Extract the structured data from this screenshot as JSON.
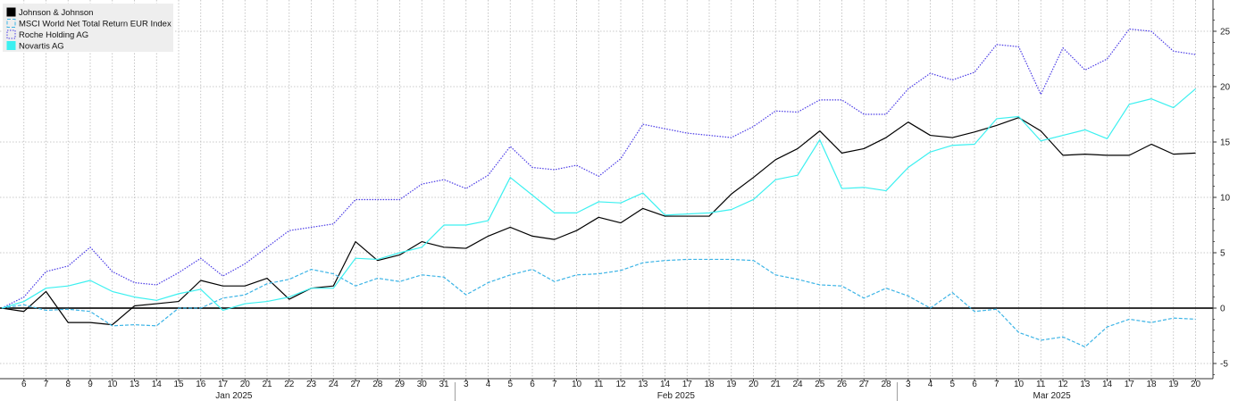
{
  "chart_data": {
    "type": "line",
    "title": "",
    "xlabel": "",
    "ylabel": "",
    "ylim": [
      -6,
      27
    ],
    "y_ticks": [
      -5,
      0,
      5,
      10,
      15,
      20,
      25
    ],
    "grid": true,
    "legend_position": "top-left",
    "x": [
      "2025-01-03",
      "2025-01-06",
      "2025-01-07",
      "2025-01-08",
      "2025-01-09",
      "2025-01-10",
      "2025-01-13",
      "2025-01-14",
      "2025-01-15",
      "2025-01-16",
      "2025-01-17",
      "2025-01-20",
      "2025-01-21",
      "2025-01-22",
      "2025-01-23",
      "2025-01-24",
      "2025-01-27",
      "2025-01-28",
      "2025-01-29",
      "2025-01-30",
      "2025-01-31",
      "2025-02-03",
      "2025-02-04",
      "2025-02-05",
      "2025-02-06",
      "2025-02-07",
      "2025-02-10",
      "2025-02-11",
      "2025-02-12",
      "2025-02-13",
      "2025-02-14",
      "2025-02-17",
      "2025-02-18",
      "2025-02-19",
      "2025-02-20",
      "2025-02-21",
      "2025-02-24",
      "2025-02-25",
      "2025-02-26",
      "2025-02-27",
      "2025-02-28",
      "2025-03-03",
      "2025-03-04",
      "2025-03-05",
      "2025-03-06",
      "2025-03-07",
      "2025-03-10",
      "2025-03-11",
      "2025-03-12",
      "2025-03-13",
      "2025-03-14",
      "2025-03-17",
      "2025-03-18",
      "2025-03-19",
      "2025-03-20"
    ],
    "x_tick_labels": [
      "6",
      "7",
      "8",
      "9",
      "10",
      "13",
      "14",
      "15",
      "16",
      "17",
      "20",
      "21",
      "22",
      "23",
      "24",
      "27",
      "28",
      "29",
      "30",
      "31",
      "3",
      "4",
      "5",
      "6",
      "7",
      "10",
      "11",
      "12",
      "13",
      "14",
      "17",
      "18",
      "19",
      "20",
      "21",
      "24",
      "25",
      "26",
      "27",
      "28",
      "3",
      "4",
      "5",
      "6",
      "7",
      "10",
      "11",
      "12",
      "13",
      "14",
      "17",
      "18",
      "19",
      "20"
    ],
    "month_labels": [
      "Jan 2025",
      "Feb 2025",
      "Mar 2025"
    ],
    "series": [
      {
        "name": "Johnson & Johnson",
        "color": "#000000",
        "style": "solid",
        "values": [
          0,
          -0.3,
          1.5,
          -1.3,
          -1.3,
          -1.5,
          0.2,
          0.4,
          0.6,
          2.5,
          2.0,
          2.0,
          2.7,
          0.8,
          1.8,
          2.0,
          6.0,
          4.3,
          4.8,
          6.0,
          5.5,
          5.4,
          6.5,
          7.3,
          6.5,
          6.2,
          7.0,
          8.2,
          7.7,
          9.0,
          8.3,
          8.3,
          8.3,
          10.3,
          11.8,
          13.4,
          14.4,
          16.0,
          14.0,
          14.4,
          15.4,
          16.8,
          15.6,
          15.4,
          15.9,
          16.5,
          17.2,
          16.0,
          13.8,
          13.9,
          13.8,
          13.8,
          14.8,
          13.9,
          14.0
        ]
      },
      {
        "name": "MSCI World Net Total Return EUR Index",
        "color": "#3cb4e6",
        "style": "dashed",
        "values": [
          0,
          0.3,
          -0.2,
          -0.1,
          -0.3,
          -1.6,
          -1.5,
          -1.6,
          0.0,
          0.0,
          0.9,
          1.2,
          2.2,
          2.6,
          3.5,
          3.1,
          2.0,
          2.7,
          2.4,
          3.0,
          2.8,
          1.2,
          2.3,
          3.0,
          3.5,
          2.4,
          3.0,
          3.1,
          3.4,
          4.1,
          4.3,
          4.4,
          4.4,
          4.4,
          4.3,
          3.0,
          2.6,
          2.1,
          2.0,
          0.9,
          1.8,
          1.1,
          0.0,
          1.4,
          -0.3,
          -0.1,
          -2.2,
          -2.9,
          -2.6,
          -3.5,
          -1.7,
          -1.0,
          -1.3,
          -0.9,
          -1.0
        ]
      },
      {
        "name": "Roche Holding AG",
        "color": "#4b3ce6",
        "style": "dotted",
        "values": [
          0,
          1.0,
          3.3,
          3.8,
          5.5,
          3.3,
          2.3,
          2.1,
          3.2,
          4.5,
          2.9,
          4.0,
          5.5,
          7.0,
          7.3,
          7.6,
          9.8,
          9.8,
          9.8,
          11.2,
          11.6,
          10.8,
          12.0,
          14.6,
          12.7,
          12.5,
          12.9,
          11.9,
          13.5,
          16.6,
          16.2,
          15.8,
          15.6,
          15.4,
          16.4,
          17.8,
          17.7,
          18.8,
          18.8,
          17.5,
          17.5,
          19.8,
          21.2,
          20.6,
          21.3,
          23.8,
          23.6,
          19.3,
          23.5,
          21.5,
          22.5,
          25.2,
          25.0,
          23.2,
          22.9
        ]
      },
      {
        "name": "Novartis AG",
        "color": "#3cf0f0",
        "style": "solid",
        "values": [
          0,
          0.6,
          1.8,
          2.0,
          2.5,
          1.5,
          1.0,
          0.7,
          1.3,
          1.7,
          -0.2,
          0.4,
          0.6,
          1.0,
          1.8,
          1.8,
          4.5,
          4.4,
          5.0,
          5.5,
          7.5,
          7.5,
          7.9,
          11.8,
          10.2,
          8.6,
          8.6,
          9.6,
          9.5,
          10.4,
          8.4,
          8.5,
          8.6,
          8.9,
          9.8,
          11.6,
          12.0,
          15.2,
          10.8,
          10.9,
          10.6,
          12.7,
          14.1,
          14.7,
          14.8,
          17.1,
          17.3,
          15.1,
          15.6,
          16.1,
          15.3,
          18.4,
          18.9,
          18.1,
          19.8
        ]
      }
    ]
  }
}
